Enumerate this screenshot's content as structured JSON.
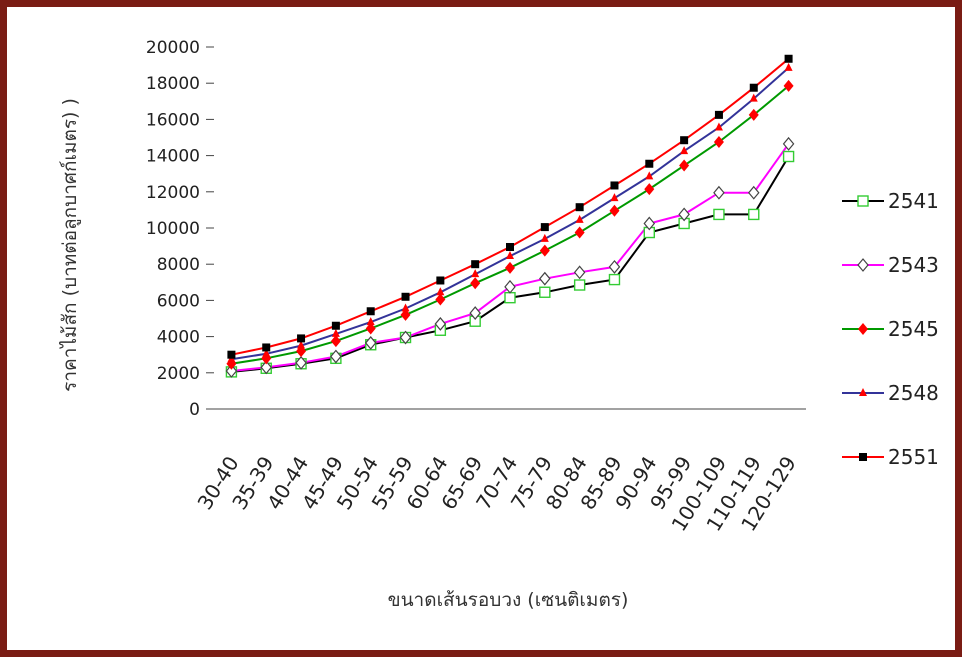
{
  "chart_data": {
    "type": "line",
    "title": "",
    "xlabel": "ขนาดเส้นรอบวง (เซนติเมตร)",
    "ylabel": "ราคาไม้สัก (บาทต่อลูกบาศก์เมตร) )",
    "ylim": [
      0,
      20000
    ],
    "y_ticks": [
      0,
      2000,
      4000,
      6000,
      8000,
      10000,
      12000,
      14000,
      16000,
      18000,
      20000
    ],
    "grid": false,
    "legend_position": "right",
    "categories": [
      "30-40",
      "35-39",
      "40-44",
      "45-49",
      "50-54",
      "55-59",
      "60-64",
      "65-69",
      "70-74",
      "75-79",
      "80-84",
      "85-89",
      "90-94",
      "95-99",
      "100-109",
      "110-119",
      "120-129"
    ],
    "series": [
      {
        "name": "2541",
        "line_color": "#000000",
        "marker": "square-open",
        "marker_color": "#33cc33",
        "values": [
          2050,
          2250,
          2500,
          2800,
          3550,
          3950,
          4350,
          4850,
          6150,
          6450,
          6850,
          7150,
          9750,
          10250,
          10750,
          10750,
          13950
        ]
      },
      {
        "name": "2543",
        "line_color": "#ff00ff",
        "marker": "diamond-open",
        "marker_color": "#444444",
        "values": [
          2100,
          2300,
          2550,
          2900,
          3650,
          3950,
          4700,
          5300,
          6750,
          7200,
          7550,
          7850,
          10250,
          10750,
          11950,
          11950,
          14650
        ]
      },
      {
        "name": "2545",
        "line_color": "#009900",
        "marker": "diamond",
        "marker_color": "#ff0000",
        "values": [
          2500,
          2800,
          3200,
          3750,
          4450,
          5200,
          6050,
          6950,
          7800,
          8750,
          9750,
          10950,
          12150,
          13450,
          14750,
          16250,
          17850
        ]
      },
      {
        "name": "2548",
        "line_color": "#333399",
        "marker": "triangle",
        "marker_color": "#ff0000",
        "values": [
          2750,
          3050,
          3500,
          4150,
          4800,
          5550,
          6450,
          7450,
          8450,
          9400,
          10450,
          11650,
          12850,
          14250,
          15550,
          17150,
          18850
        ]
      },
      {
        "name": "2551",
        "line_color": "#ff0000",
        "marker": "square",
        "marker_color": "#000000",
        "values": [
          3000,
          3400,
          3900,
          4600,
          5400,
          6200,
          7100,
          8000,
          8950,
          10050,
          11150,
          12350,
          13550,
          14850,
          16250,
          17750,
          19350
        ]
      }
    ]
  }
}
